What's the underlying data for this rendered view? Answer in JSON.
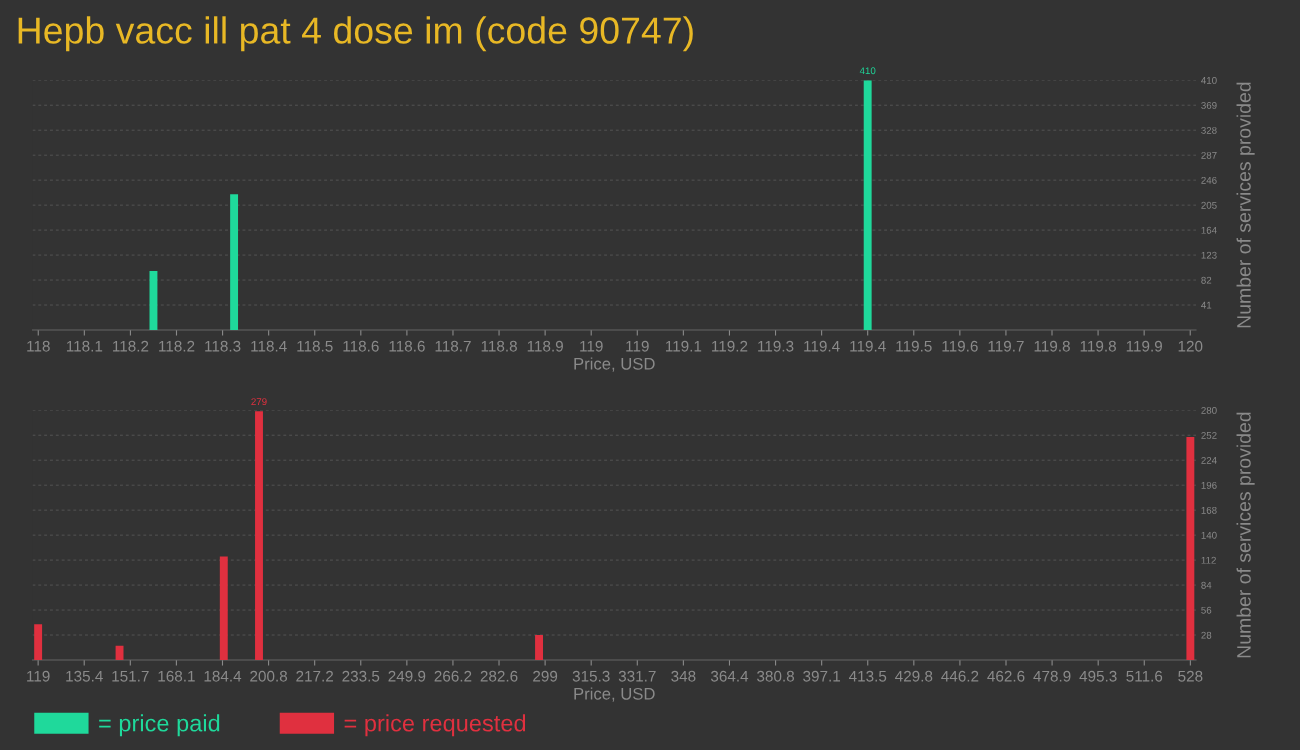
{
  "chart_data": [
    {
      "type": "bar",
      "title": "Hepb vacc ill pat 4 dose im (code 90747)",
      "xlabel": "Price, USD",
      "ylabel": "Number of services provided",
      "x": [
        118.2,
        118.34,
        119.44
      ],
      "series": [
        {
          "name": "= price paid",
          "color": "#1fd99b",
          "values": [
            97,
            223,
            410
          ],
          "value_labels": [
            null,
            null,
            "410"
          ]
        }
      ],
      "xlim": [
        117.99,
        120.01
      ],
      "xticks": [
        {
          "value": 118,
          "label": "118"
        },
        {
          "value": 118.08,
          "label": "118.1"
        },
        {
          "value": 118.16,
          "label": "118.2"
        },
        {
          "value": 118.24,
          "label": "118.2"
        },
        {
          "value": 118.32,
          "label": "118.3"
        },
        {
          "value": 118.4,
          "label": "118.4"
        },
        {
          "value": 118.48,
          "label": "118.5"
        },
        {
          "value": 118.56,
          "label": "118.6"
        },
        {
          "value": 118.64,
          "label": "118.6"
        },
        {
          "value": 118.72,
          "label": "118.7"
        },
        {
          "value": 118.8,
          "label": "118.8"
        },
        {
          "value": 118.88,
          "label": "118.9"
        },
        {
          "value": 118.96,
          "label": "119"
        },
        {
          "value": 119.04,
          "label": "119"
        },
        {
          "value": 119.12,
          "label": "119.1"
        },
        {
          "value": 119.2,
          "label": "119.2"
        },
        {
          "value": 119.28,
          "label": "119.3"
        },
        {
          "value": 119.36,
          "label": "119.4"
        },
        {
          "value": 119.44,
          "label": "119.4"
        },
        {
          "value": 119.52,
          "label": "119.5"
        },
        {
          "value": 119.6,
          "label": "119.6"
        },
        {
          "value": 119.68,
          "label": "119.7"
        },
        {
          "value": 119.76,
          "label": "119.8"
        },
        {
          "value": 119.84,
          "label": "119.8"
        },
        {
          "value": 119.92,
          "label": "119.9"
        },
        {
          "value": 120,
          "label": "120"
        }
      ],
      "ylim": [
        0,
        410
      ],
      "yticks": [
        41,
        82,
        123,
        164,
        205,
        246,
        287,
        328,
        369,
        410
      ],
      "grid": "y",
      "legend": "bottom left"
    },
    {
      "type": "bar",
      "xlabel": "Price, USD",
      "ylabel": "Number of services provided",
      "x": [
        119,
        147.9,
        184.9,
        197.4,
        296.8,
        528
      ],
      "series": [
        {
          "name": "= price requested",
          "color": "#e0303f",
          "values": [
            40,
            16,
            116,
            279,
            28,
            250
          ],
          "value_labels": [
            null,
            null,
            null,
            "279",
            null,
            null
          ]
        }
      ],
      "xlim": [
        117,
        530
      ],
      "xticks": [
        {
          "value": 119,
          "label": "119"
        },
        {
          "value": 135.36,
          "label": "135.4"
        },
        {
          "value": 151.72,
          "label": "151.7"
        },
        {
          "value": 168.08,
          "label": "168.1"
        },
        {
          "value": 184.44,
          "label": "184.4"
        },
        {
          "value": 200.8,
          "label": "200.8"
        },
        {
          "value": 217.16,
          "label": "217.2"
        },
        {
          "value": 233.52,
          "label": "233.5"
        },
        {
          "value": 249.88,
          "label": "249.9"
        },
        {
          "value": 266.24,
          "label": "266.2"
        },
        {
          "value": 282.6,
          "label": "282.6"
        },
        {
          "value": 298.96,
          "label": "299"
        },
        {
          "value": 315.32,
          "label": "315.3"
        },
        {
          "value": 331.68,
          "label": "331.7"
        },
        {
          "value": 348.04,
          "label": "348"
        },
        {
          "value": 364.4,
          "label": "364.4"
        },
        {
          "value": 380.76,
          "label": "380.8"
        },
        {
          "value": 397.12,
          "label": "397.1"
        },
        {
          "value": 413.48,
          "label": "413.5"
        },
        {
          "value": 429.84,
          "label": "429.8"
        },
        {
          "value": 446.2,
          "label": "446.2"
        },
        {
          "value": 462.56,
          "label": "462.6"
        },
        {
          "value": 478.92,
          "label": "478.9"
        },
        {
          "value": 495.28,
          "label": "495.3"
        },
        {
          "value": 511.64,
          "label": "511.6"
        },
        {
          "value": 528,
          "label": "528"
        }
      ],
      "ylim": [
        0,
        280
      ],
      "yticks": [
        28,
        56,
        84,
        112,
        140,
        168,
        196,
        224,
        252,
        280
      ],
      "grid": "y",
      "legend": "bottom left"
    }
  ]
}
